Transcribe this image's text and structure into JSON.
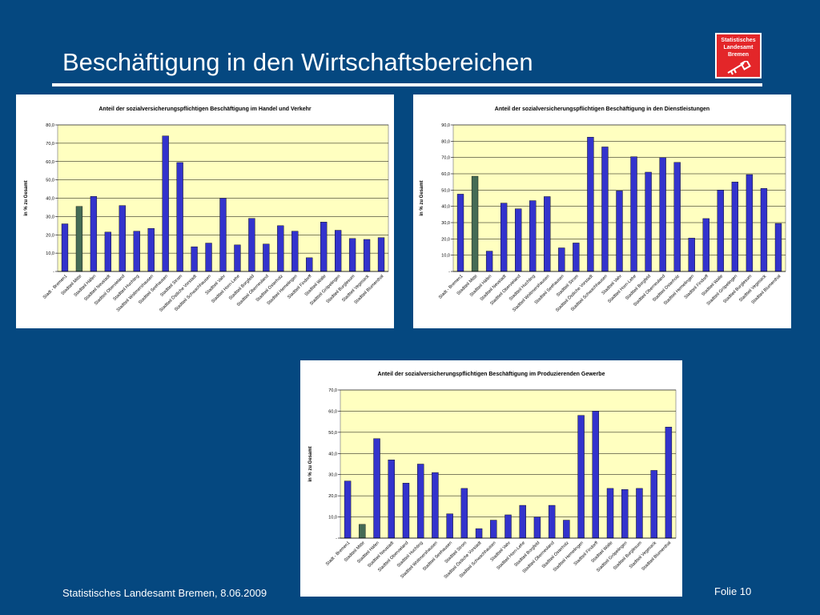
{
  "slide": {
    "title": "Beschäftigung in den Wirtschaftsbereichen",
    "footer_left": "Statistisches Landesamt Bremen, 8.06.2009",
    "footer_right": "Folie 10"
  },
  "logo": {
    "line1": "Statistisches",
    "line2": "Landesamt",
    "line3": "Bremen",
    "icon": "bremen-key-icon"
  },
  "colors": {
    "background": "#054880",
    "plot_area": "#ffffc0",
    "bar_blue": "#3333cc",
    "bar_highlight": "#456b55",
    "logo_red": "#e32629"
  },
  "chart_data": [
    {
      "type": "bar",
      "title": "Anteil der sozialversicherungspflichtigen Beschäftigung im Handel und Verkehr",
      "ylabel": "in % zu Gesamt",
      "xlabel": "",
      "ylim": [
        0,
        80
      ],
      "yticks": [
        "-",
        "10,0",
        "20,0",
        "30,0",
        "40,0",
        "50,0",
        "60,0",
        "70,0",
        "80,0"
      ],
      "grid": true,
      "highlight_index": 1,
      "categories": [
        "Stadt - Bremen1",
        "Stadtteil Mitte",
        "Stadtteil Häfen",
        "Stadtteil Neustadt",
        "Stadtteil Obervieland",
        "Stadtteil Huchting",
        "Stadtteil Woltmershausen",
        "Stadtteil Seehausen",
        "Stadtteil Strom",
        "Stadtteil Östliche Vorstadt",
        "Stadtteil Schwachhausen",
        "Stadtteil Vahr",
        "Stadtteil Horn-Lehe",
        "Stadtteil Borgfeld",
        "Stadtteil Oberneuland",
        "Stadtteil Osterholz",
        "Stadtteil Hemelingen",
        "Stadtteil Findorff",
        "Stadtteil Walle",
        "Stadtteil Gröpelingen",
        "Stadtteil Burglesum",
        "Stadtteil Vegesack",
        "Stadtteil Blumenthal"
      ],
      "values": [
        26,
        35.5,
        41,
        21.5,
        36,
        22,
        23.5,
        74,
        59.5,
        13.5,
        15.5,
        40,
        14.5,
        29,
        15,
        25,
        22,
        7.5,
        27,
        22.5,
        18,
        17.5,
        18.5
      ]
    },
    {
      "type": "bar",
      "title": "Anteil der sozialversicherungspflichtigen Beschäftigung in den Dienstleistungen",
      "ylabel": "in % zu Gesamt",
      "xlabel": "",
      "ylim": [
        0,
        90
      ],
      "yticks": [
        "-",
        "10,0",
        "20,0",
        "30,0",
        "40,0",
        "50,0",
        "60,0",
        "70,0",
        "80,0",
        "90,0"
      ],
      "grid": true,
      "highlight_index": 1,
      "categories": [
        "Stadt - Bremen1",
        "Stadtteil Mitte",
        "Stadtteil Häfen",
        "Stadtteil Neustadt",
        "Stadtteil Obervieland",
        "Stadtteil Huchting",
        "Stadtteil Woltmershausen",
        "Stadtteil Seehausen",
        "Stadtteil Strom",
        "Stadtteil Östliche Vorstadt",
        "Stadtteil Schwachhausen",
        "Stadtteil Vahr",
        "Stadtteil Horn-Lehe",
        "Stadtteil Borgfeld",
        "Stadtteil Oberneuland",
        "Stadtteil Osterholz",
        "Stadtteil Hemelingen",
        "Stadtteil Findorff",
        "Stadtteil Walle",
        "Stadtteil Gröpelingen",
        "Stadtteil Burglesum",
        "Stadtteil Vegesack",
        "Stadtteil Blumenthal"
      ],
      "values": [
        47.5,
        58.5,
        12.5,
        42,
        38.5,
        43.5,
        46,
        14.5,
        17.5,
        82.5,
        76.5,
        49.5,
        70.5,
        61,
        70,
        67,
        20.5,
        32.5,
        50,
        55,
        59.5,
        51,
        29.5
      ]
    },
    {
      "type": "bar",
      "title": "Anteil der sozialversicherungspflichtigen Beschäftigung im Produzierenden Gewerbe",
      "ylabel": "in % zu Gesamt",
      "xlabel": "",
      "ylim": [
        0,
        70
      ],
      "yticks": [
        "-",
        "10,0",
        "20,0",
        "30,0",
        "40,0",
        "50,0",
        "60,0",
        "70,0"
      ],
      "grid": true,
      "highlight_index": 1,
      "categories": [
        "Stadt - Bremen1",
        "Stadtteil Mitte",
        "Stadtteil Häfen",
        "Stadtteil Neustadt",
        "Stadtteil Obervieland",
        "Stadtteil Huchting",
        "Stadtteil Woltmershausen",
        "Stadtteil Seehausen",
        "Stadtteil Strom",
        "Stadtteil Östliche Vorstadt",
        "Stadtteil Schwachhausen",
        "Stadtteil Vahr",
        "Stadtteil Horn-Lehe",
        "Stadtteil Borgfeld",
        "Stadtteil Oberneuland",
        "Stadtteil Osterholz",
        "Stadtteil Hemelingen",
        "Stadtteil Findorff",
        "Stadtteil Walle",
        "Stadtteil Gröpelingen",
        "Stadtteil Burglesum",
        "Stadtteil Vegesack",
        "Stadtteil Blumenthal"
      ],
      "values": [
        27,
        6.5,
        47,
        37,
        26,
        35,
        31,
        11.5,
        23.5,
        4.5,
        8.5,
        11,
        15.5,
        10,
        15.5,
        8.5,
        58,
        60,
        23.5,
        23,
        23.5,
        32,
        52.5
      ]
    }
  ]
}
